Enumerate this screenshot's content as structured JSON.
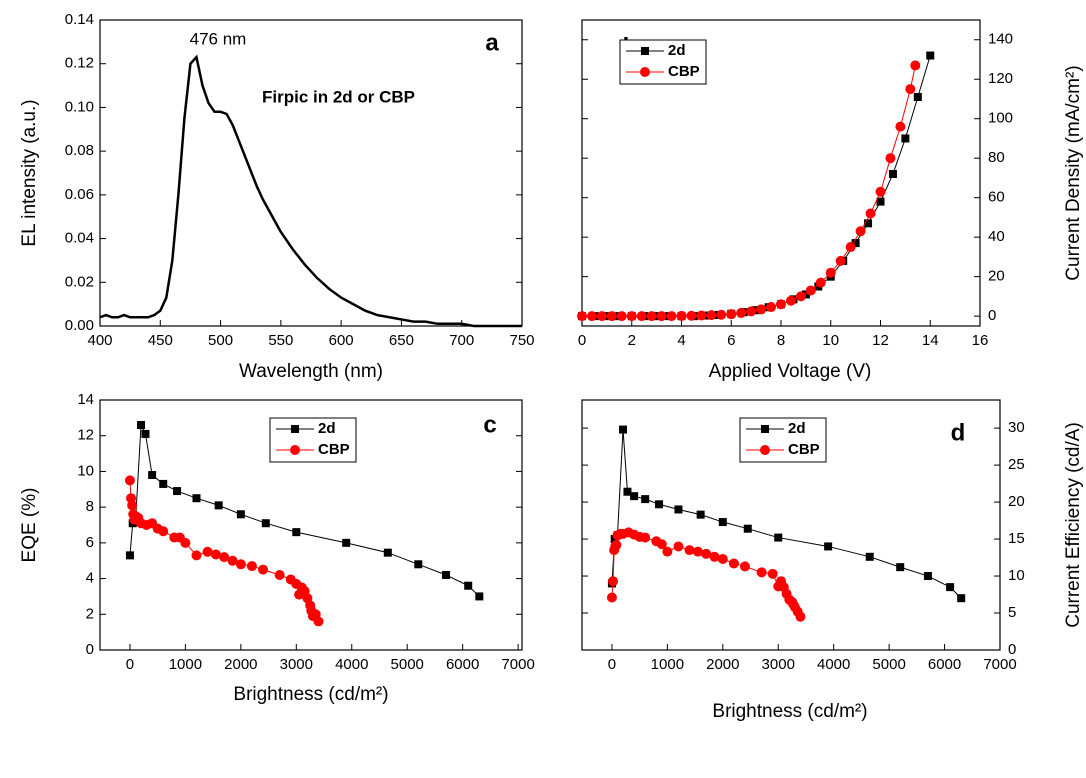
{
  "chart_data": [
    {
      "type": "line",
      "panel_label": "a",
      "x_label": "Wavelength (nm)",
      "y_label": "EL intensity (a.u.)",
      "annotations": [
        "476 nm",
        "Firpic in 2d or CBP"
      ],
      "x": [
        400,
        405,
        410,
        415,
        420,
        425,
        430,
        435,
        440,
        445,
        450,
        455,
        460,
        465,
        470,
        475,
        480,
        485,
        490,
        495,
        500,
        505,
        510,
        515,
        520,
        525,
        530,
        535,
        540,
        545,
        550,
        560,
        570,
        580,
        590,
        600,
        610,
        620,
        630,
        640,
        650,
        660,
        670,
        680,
        690,
        700,
        710,
        720,
        730,
        740,
        750
      ],
      "values": [
        0.004,
        0.005,
        0.004,
        0.004,
        0.005,
        0.004,
        0.004,
        0.004,
        0.004,
        0.005,
        0.007,
        0.013,
        0.03,
        0.06,
        0.095,
        0.12,
        0.123,
        0.11,
        0.102,
        0.098,
        0.098,
        0.097,
        0.092,
        0.085,
        0.078,
        0.071,
        0.064,
        0.058,
        0.053,
        0.048,
        0.043,
        0.035,
        0.028,
        0.022,
        0.017,
        0.013,
        0.01,
        0.007,
        0.005,
        0.004,
        0.003,
        0.002,
        0.002,
        0.001,
        0.001,
        0.001,
        0,
        0,
        0,
        0,
        0
      ],
      "color": "#000000",
      "xlim": [
        400,
        750
      ],
      "xticks": [
        400,
        450,
        500,
        550,
        600,
        650,
        700,
        750
      ],
      "ylim": [
        0,
        0.14
      ],
      "yticks": [
        {
          "value": 0,
          "label": "0.00"
        },
        {
          "value": 0.02,
          "label": "0.02"
        },
        {
          "value": 0.04,
          "label": "0.04"
        },
        {
          "value": 0.06,
          "label": "0.06"
        },
        {
          "value": 0.08,
          "label": "0.08"
        },
        {
          "value": 0.1,
          "label": "0.10"
        },
        {
          "value": 0.12,
          "label": "0.12"
        },
        {
          "value": 0.14,
          "label": "0.14"
        }
      ],
      "yaxis": "left"
    },
    {
      "type": "line",
      "panel_label": "b",
      "x_label": "Applied Voltage (V)",
      "y_label": "Current Density (mA/cm²)",
      "series": [
        {
          "name": "2d",
          "color": "#000000",
          "marker": "square",
          "x": [
            0,
            0.5,
            1,
            1.5,
            2,
            2.5,
            3,
            3.5,
            4,
            4.5,
            5,
            5.5,
            6,
            6.5,
            7,
            7.5,
            8,
            8.5,
            9,
            9.5,
            10,
            10.5,
            11,
            11.5,
            12,
            12.5,
            13,
            13.5,
            14
          ],
          "values": [
            0,
            0,
            0,
            0,
            0,
            0,
            0,
            0,
            0,
            0,
            0.3,
            0.6,
            1.2,
            2,
            3,
            4.5,
            6,
            8.5,
            11,
            15,
            20,
            28,
            37,
            47,
            58,
            72,
            90,
            111,
            132
          ]
        },
        {
          "name": "CBP",
          "color": "#ff0000",
          "marker": "circle",
          "x": [
            0,
            0.4,
            0.8,
            1.2,
            1.6,
            2,
            2.4,
            2.8,
            3.2,
            3.6,
            4,
            4.4,
            4.8,
            5.2,
            5.6,
            6,
            6.4,
            6.8,
            7.2,
            7.6,
            8,
            8.4,
            8.8,
            9.2,
            9.6,
            10,
            10.4,
            10.8,
            11.2,
            11.6,
            12,
            12.4,
            12.8,
            13.2,
            13.4
          ],
          "values": [
            0,
            0,
            0,
            0,
            0,
            0,
            0,
            0,
            0,
            0,
            0.1,
            0.2,
            0.3,
            0.5,
            0.7,
            1,
            1.6,
            2.4,
            3.4,
            4.6,
            6,
            7.8,
            10,
            13,
            17,
            22,
            28,
            35,
            43,
            52,
            63,
            80,
            96,
            115,
            127
          ]
        }
      ],
      "xlim": [
        0,
        16
      ],
      "xticks": [
        0,
        2,
        4,
        6,
        8,
        10,
        12,
        14,
        16
      ],
      "ylim": [
        -5,
        150
      ],
      "yticks": [
        0,
        20,
        40,
        60,
        80,
        100,
        120,
        140
      ],
      "yaxis": "right",
      "legend": "upper left"
    },
    {
      "type": "line",
      "panel_label": "c",
      "x_label": "Brightness (cd/m²)",
      "y_label": "EQE (%)",
      "series": [
        {
          "name": "2d",
          "color": "#000000",
          "marker": "square",
          "x": [
            0,
            50,
            100,
            200,
            280,
            400,
            600,
            850,
            1200,
            1600,
            2000,
            2450,
            3000,
            3900,
            4650,
            5200,
            5700,
            6100,
            6300
          ],
          "values": [
            5.3,
            7.1,
            7.2,
            12.6,
            12.1,
            9.8,
            9.3,
            8.9,
            8.5,
            8.1,
            7.6,
            7.1,
            6.6,
            6.0,
            5.45,
            4.8,
            4.2,
            3.6,
            3.0
          ]
        },
        {
          "name": "CBP",
          "color": "#ff0000",
          "marker": "circle",
          "x": [
            0,
            20,
            40,
            60,
            80,
            100,
            150,
            200,
            300,
            400,
            500,
            600,
            800,
            900,
            1000,
            1200,
            1400,
            1550,
            1700,
            1850,
            2000,
            2200,
            2400,
            2700,
            2900,
            3000,
            3050,
            3100,
            3150,
            3200,
            3250,
            3270,
            3300,
            3350,
            3400
          ],
          "values": [
            9.5,
            8.5,
            8.1,
            7.6,
            7.3,
            7.5,
            7.4,
            7.1,
            7.0,
            7.1,
            6.8,
            6.65,
            6.3,
            6.3,
            6.0,
            5.3,
            5.5,
            5.35,
            5.2,
            5.0,
            4.8,
            4.7,
            4.5,
            4.2,
            3.95,
            3.7,
            3.1,
            3.5,
            3.3,
            2.9,
            2.5,
            2.2,
            1.9,
            2.0,
            1.6
          ]
        }
      ],
      "xlim": [
        -540,
        7070
      ],
      "xticks": [
        0,
        1000,
        2000,
        3000,
        4000,
        5000,
        6000,
        7000
      ],
      "ylim": [
        0,
        14
      ],
      "yticks": [
        0,
        2,
        4,
        6,
        8,
        10,
        12,
        14
      ],
      "yaxis": "left",
      "legend": "upper center"
    },
    {
      "type": "line",
      "panel_label": "d",
      "x_label": "Brightness (cd/m²)",
      "y_label": "Current Efficiency (cd/A)",
      "series": [
        {
          "name": "2d",
          "color": "#000000",
          "marker": "square",
          "x": [
            0,
            50,
            100,
            200,
            280,
            400,
            600,
            850,
            1200,
            1600,
            2000,
            2450,
            3000,
            3900,
            4650,
            5200,
            5700,
            6100,
            6300
          ],
          "values": [
            9.0,
            15,
            15.5,
            29.8,
            21.4,
            20.8,
            20.4,
            19.7,
            19.0,
            18.3,
            17.3,
            16.4,
            15.2,
            14.0,
            12.6,
            11.2,
            10.0,
            8.5,
            7.0
          ]
        },
        {
          "name": "CBP",
          "color": "#ff0000",
          "marker": "circle",
          "x": [
            0,
            20,
            40,
            60,
            80,
            100,
            150,
            200,
            300,
            400,
            500,
            600,
            800,
            900,
            1000,
            1200,
            1400,
            1550,
            1700,
            1850,
            2000,
            2200,
            2400,
            2700,
            2900,
            3000,
            3050,
            3100,
            3150,
            3200,
            3250,
            3270,
            3300,
            3350,
            3400
          ],
          "values": [
            7.1,
            9.3,
            13.5,
            14,
            14.2,
            15.5,
            15.7,
            15.7,
            15.9,
            15.6,
            15.3,
            15.2,
            14.7,
            14.3,
            13.3,
            14.0,
            13.5,
            13.3,
            13.0,
            12.6,
            12.3,
            11.7,
            11.3,
            10.5,
            10.3,
            8.6,
            9.3,
            8.5,
            7.6,
            6.8,
            6.5,
            6.2,
            5.8,
            5.2,
            4.5
          ]
        }
      ],
      "xlim": [
        -540,
        7000
      ],
      "xticks": [
        0,
        1000,
        2000,
        3000,
        4000,
        5000,
        6000,
        7000
      ],
      "ylim": [
        0,
        33.8
      ],
      "yticks": [
        0,
        5,
        10,
        15,
        20,
        25,
        30
      ],
      "yaxis": "right",
      "legend": "upper center"
    }
  ]
}
